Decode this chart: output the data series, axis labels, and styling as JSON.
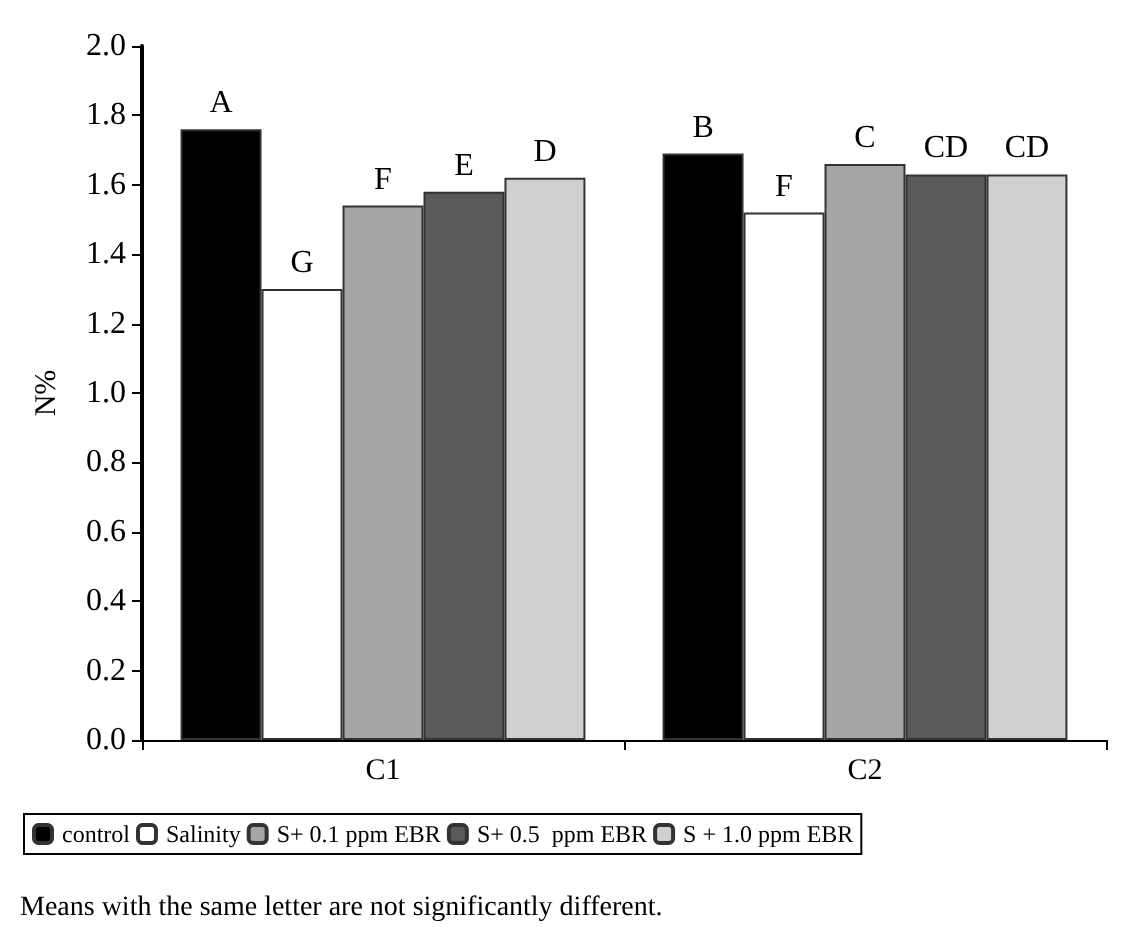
{
  "chart_data": {
    "type": "bar",
    "ylabel": "N%",
    "categories": [
      "C1",
      "C2"
    ],
    "series": [
      {
        "name": "control",
        "color": "#000000",
        "values": [
          1.76,
          1.69
        ],
        "value_labels": [
          "A",
          "B"
        ]
      },
      {
        "name": "Salinity",
        "color": "#ffffff",
        "values": [
          1.3,
          1.52
        ],
        "value_labels": [
          "G",
          "F"
        ]
      },
      {
        "name": "S+ 0.1 ppm EBR",
        "color": "#a6a6a6",
        "values": [
          1.54,
          1.66
        ],
        "value_labels": [
          "F",
          "C"
        ]
      },
      {
        "name": "S+ 0.5  ppm EBR",
        "color": "#5a5a5a",
        "values": [
          1.58,
          1.63
        ],
        "value_labels": [
          "E",
          "CD"
        ]
      },
      {
        "name": "S + 1.0 ppm EBR",
        "color": "#d0d0d0",
        "values": [
          1.62,
          1.63
        ],
        "value_labels": [
          "D",
          "CD"
        ]
      }
    ],
    "ylim": [
      0,
      2
    ],
    "yticks": [
      {
        "value": 0,
        "label": "0.0"
      },
      {
        "value": 0.2,
        "label": "0.2"
      },
      {
        "value": 0.4,
        "label": "0.4"
      },
      {
        "value": 0.6,
        "label": "0.6"
      },
      {
        "value": 0.8,
        "label": "0.8"
      },
      {
        "value": 1,
        "label": "1.0"
      },
      {
        "value": 1.2,
        "label": "1.2"
      },
      {
        "value": 1.4,
        "label": "1.4"
      },
      {
        "value": 1.6,
        "label": "1.6"
      },
      {
        "value": 1.8,
        "label": "1.8"
      },
      {
        "value": 2,
        "label": "2.0"
      }
    ],
    "grid": false,
    "legend": "bottom",
    "annotations": [
      "Means with the same letter are not significantly different."
    ]
  }
}
